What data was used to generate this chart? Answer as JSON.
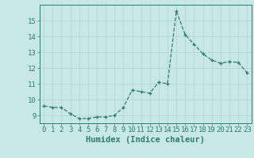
{
  "x": [
    0,
    1,
    2,
    3,
    4,
    5,
    6,
    7,
    8,
    9,
    10,
    11,
    12,
    13,
    14,
    15,
    16,
    17,
    18,
    19,
    20,
    21,
    22,
    23
  ],
  "y": [
    9.6,
    9.5,
    9.5,
    9.1,
    8.8,
    8.8,
    8.9,
    8.9,
    9.0,
    9.5,
    10.6,
    10.5,
    10.4,
    11.1,
    11.0,
    15.6,
    14.1,
    13.5,
    12.9,
    12.5,
    12.3,
    12.4,
    12.35,
    11.7
  ],
  "xlabel": "Humidex (Indice chaleur)",
  "ylim": [
    8.5,
    16.0
  ],
  "xlim": [
    -0.5,
    23.5
  ],
  "yticks": [
    9,
    10,
    11,
    12,
    13,
    14,
    15
  ],
  "xticks": [
    0,
    1,
    2,
    3,
    4,
    5,
    6,
    7,
    8,
    9,
    10,
    11,
    12,
    13,
    14,
    15,
    16,
    17,
    18,
    19,
    20,
    21,
    22,
    23
  ],
  "line_color": "#2e7d6e",
  "marker_color": "#2e7d6e",
  "bg_color": "#c8e8e8",
  "grid_color": "#b8d4d4",
  "axis_color": "#2e7d6e",
  "tick_fontsize": 6.5,
  "label_fontsize": 7.5
}
